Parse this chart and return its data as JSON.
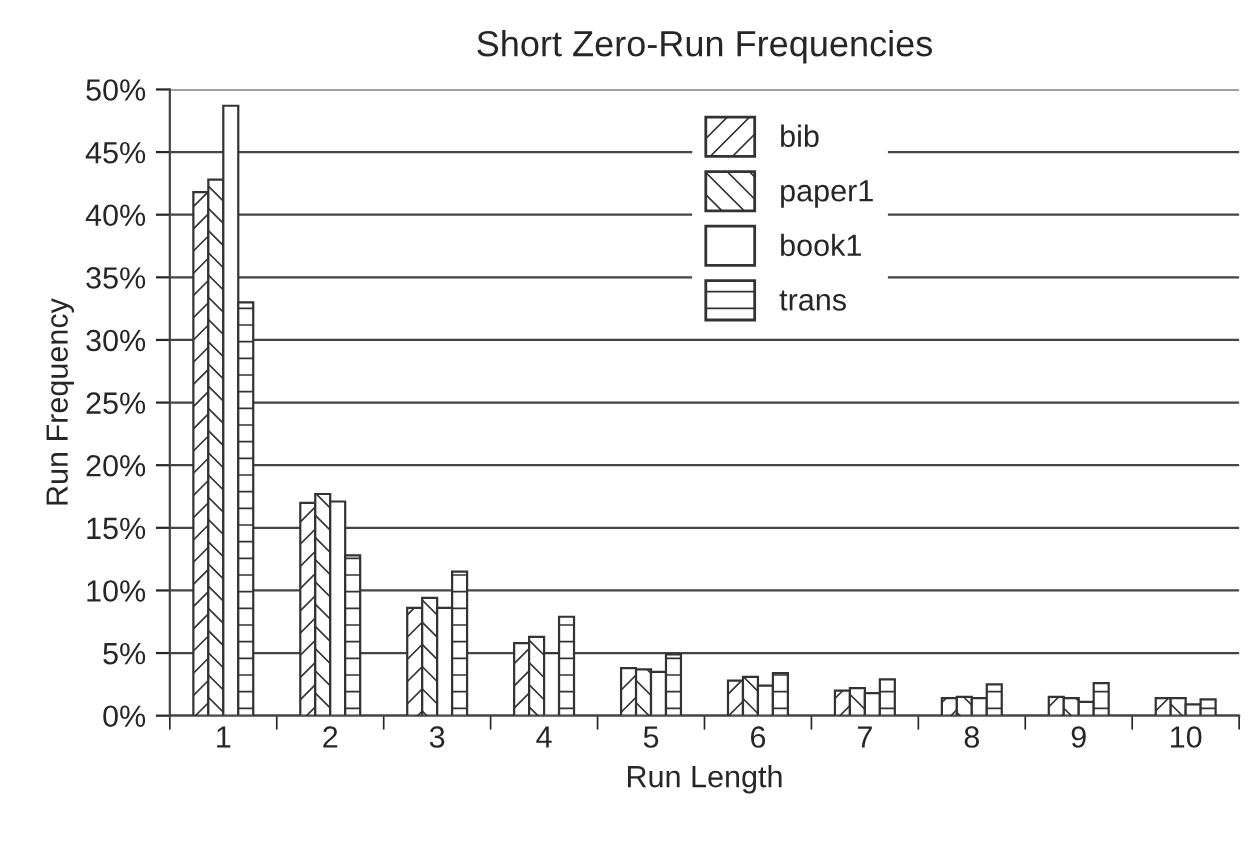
{
  "chart_data": {
    "type": "bar",
    "title": "Short Zero-Run Frequencies",
    "xlabel": "Run Length",
    "ylabel": "Run Frequency",
    "categories": [
      "1",
      "2",
      "3",
      "4",
      "5",
      "6",
      "7",
      "8",
      "9",
      "10"
    ],
    "series": [
      {
        "name": "bib",
        "color": "#333333",
        "values": [
          41.8,
          17.0,
          8.6,
          5.8,
          3.8,
          2.8,
          2.0,
          1.4,
          1.5,
          1.4
        ]
      },
      {
        "name": "paper1",
        "color": "#333333",
        "values": [
          42.8,
          17.7,
          9.4,
          6.3,
          3.7,
          3.1,
          2.2,
          1.5,
          1.4,
          1.4
        ]
      },
      {
        "name": "book1",
        "color": "#333333",
        "values": [
          48.7,
          17.1,
          8.6,
          5.0,
          3.5,
          2.4,
          1.8,
          1.4,
          1.1,
          0.9
        ]
      },
      {
        "name": "trans",
        "color": "#333333",
        "values": [
          33.0,
          12.8,
          11.5,
          7.9,
          4.9,
          3.4,
          2.9,
          2.5,
          2.6,
          1.3
        ]
      }
    ],
    "ylim": [
      0,
      50
    ],
    "yticks": [
      {
        "value": 0,
        "label": "0%"
      },
      {
        "value": 5,
        "label": "5%"
      },
      {
        "value": 10,
        "label": "10%"
      },
      {
        "value": 15,
        "label": "15%"
      },
      {
        "value": 20,
        "label": "20%"
      },
      {
        "value": 25,
        "label": "25%"
      },
      {
        "value": 30,
        "label": "30%"
      },
      {
        "value": 35,
        "label": "35%"
      },
      {
        "value": 40,
        "label": "40%"
      },
      {
        "value": 45,
        "label": "45%"
      },
      {
        "value": 50,
        "label": "50%"
      }
    ],
    "grid": "y",
    "legend": "top"
  }
}
